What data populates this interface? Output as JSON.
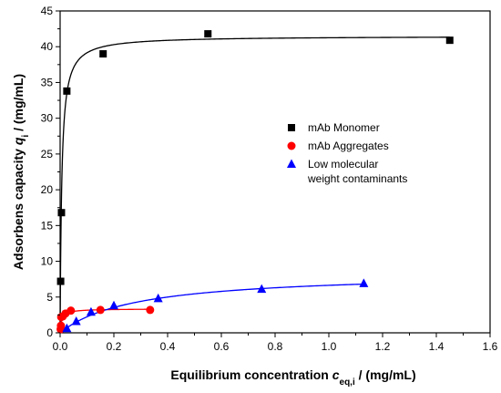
{
  "chart_data": {
    "type": "scatter",
    "xlabel": {
      "main": "Equilibrium concentration ",
      "var": "c",
      "sub": "eq,i",
      "unit": " / (mg/mL)"
    },
    "ylabel": {
      "main": "Adsorbens capacity ",
      "var": "q",
      "sub": "i",
      "unit": " / (mg/mL)"
    },
    "xlim": [
      0,
      1.6
    ],
    "ylim": [
      0,
      45
    ],
    "xticks": [
      "0.0",
      "0.2",
      "0.4",
      "0.6",
      "0.8",
      "1.0",
      "1.2",
      "1.4",
      "1.6"
    ],
    "yticks": [
      "0",
      "5",
      "10",
      "15",
      "20",
      "25",
      "30",
      "35",
      "40",
      "45"
    ],
    "grid": false,
    "legend_position": "center-right",
    "series": [
      {
        "name": "mAb Monomer",
        "marker": "square",
        "color": "#000000",
        "points": [
          [
            0.002,
            7.2
          ],
          [
            0.005,
            16.8
          ],
          [
            0.025,
            33.8
          ],
          [
            0.16,
            39.0
          ],
          [
            0.55,
            41.8
          ],
          [
            1.45,
            40.9
          ]
        ],
        "fit": {
          "model": "langmuir",
          "qmax": 41.5,
          "k": 0.006,
          "color": "#000000"
        }
      },
      {
        "name": "mAb Aggregates",
        "marker": "circle",
        "color": "#ff0000",
        "points": [
          [
            0.002,
            0.5
          ],
          [
            0.003,
            1.0
          ],
          [
            0.004,
            2.2
          ],
          [
            0.01,
            2.3
          ],
          [
            0.02,
            2.7
          ],
          [
            0.04,
            3.1
          ],
          [
            0.15,
            3.2
          ],
          [
            0.335,
            3.2
          ]
        ],
        "fit": {
          "model": "langmuir",
          "qmax": 3.35,
          "k": 0.006,
          "color": "#ff0000"
        }
      },
      {
        "name": "Low molecular weight contaminants",
        "name_lines": [
          "Low molecular",
          "weight contaminants"
        ],
        "marker": "triangle",
        "color": "#0000ff",
        "points": [
          [
            0.025,
            0.6
          ],
          [
            0.06,
            1.6
          ],
          [
            0.115,
            2.9
          ],
          [
            0.2,
            3.8
          ],
          [
            0.365,
            4.8
          ],
          [
            0.75,
            6.1
          ],
          [
            1.13,
            6.9
          ]
        ],
        "fit": {
          "model": "langmuir",
          "qmax": 8.5,
          "k": 0.28,
          "color": "#0000ff"
        }
      }
    ]
  }
}
